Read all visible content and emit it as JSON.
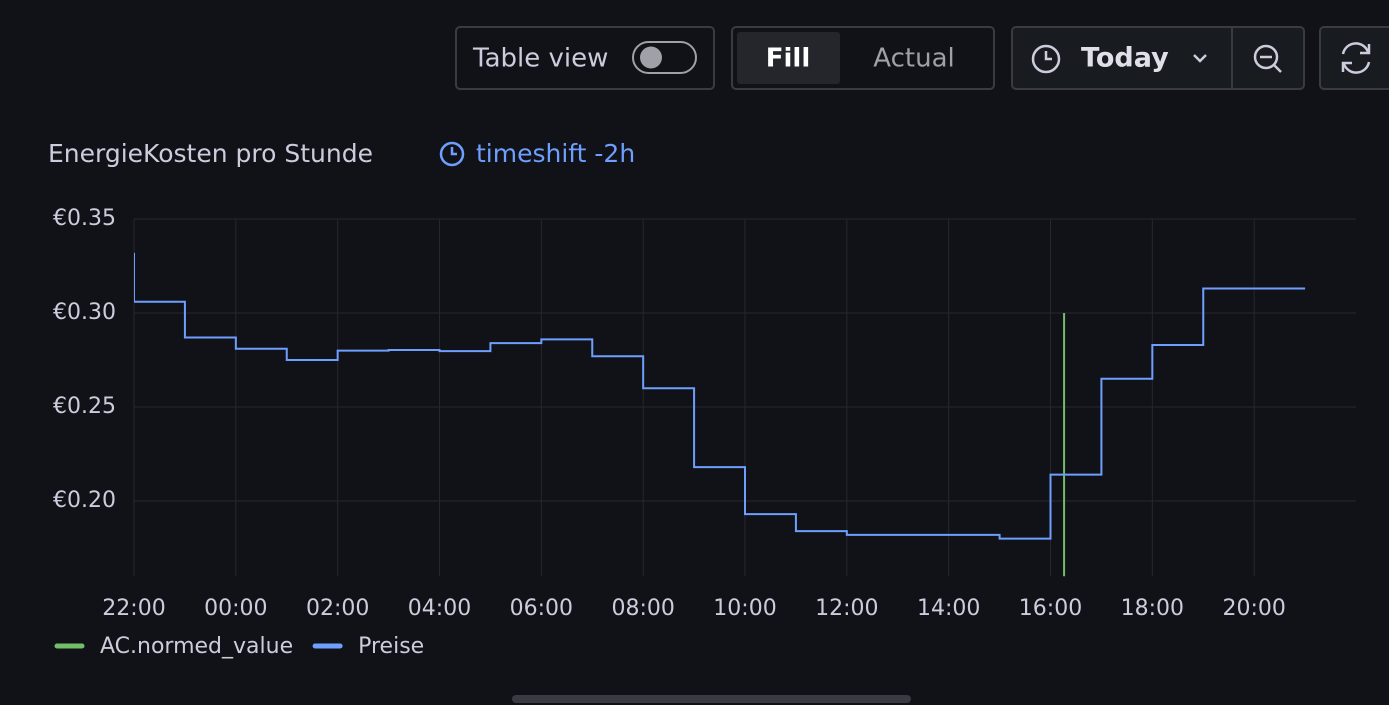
{
  "toolbar": {
    "table_view": "Table view",
    "fill": "Fill",
    "actual": "Actual",
    "time_range": "Today"
  },
  "chart_data": {
    "type": "line",
    "title": "EnergieKosten pro Stunde",
    "subtitle": "timeshift -2h",
    "step": true,
    "grid": true,
    "legend": "bottom-left",
    "xlim": [
      "22:00",
      "22:00"
    ],
    "xticks": [
      "22:00",
      "00:00",
      "02:00",
      "04:00",
      "06:00",
      "08:00",
      "10:00",
      "12:00",
      "14:00",
      "16:00",
      "18:00",
      "20:00"
    ],
    "ylim": [
      0.16,
      0.35
    ],
    "yticks": [
      {
        "value": 0.2,
        "label": "€0.20"
      },
      {
        "value": 0.25,
        "label": "€0.25"
      },
      {
        "value": 0.3,
        "label": "€0.30"
      },
      {
        "value": 0.35,
        "label": "€0.35"
      }
    ],
    "series": [
      {
        "name": "AC.normed_value",
        "color": "#73bf69",
        "x": [
          "16:16",
          "16:16"
        ],
        "values": [
          0.3,
          0.16
        ]
      },
      {
        "name": "Preise",
        "color": "#6e9fff",
        "x": [
          "22:00",
          "22:00",
          "23:00",
          "00:00",
          "01:00",
          "02:00",
          "03:00",
          "04:00",
          "05:00",
          "06:00",
          "07:00",
          "08:00",
          "09:00",
          "10:00",
          "11:00",
          "12:00",
          "13:00",
          "14:00",
          "15:00",
          "16:00",
          "17:00",
          "18:00",
          "19:00",
          "20:00",
          "21:00"
        ],
        "values": [
          0.332,
          0.306,
          0.287,
          0.281,
          0.275,
          0.28,
          0.2803,
          0.2797,
          0.284,
          0.286,
          0.277,
          0.26,
          0.218,
          0.193,
          0.184,
          0.182,
          0.182,
          0.182,
          0.18,
          0.214,
          0.265,
          0.283,
          0.313,
          0.313,
          0.313
        ]
      }
    ]
  }
}
